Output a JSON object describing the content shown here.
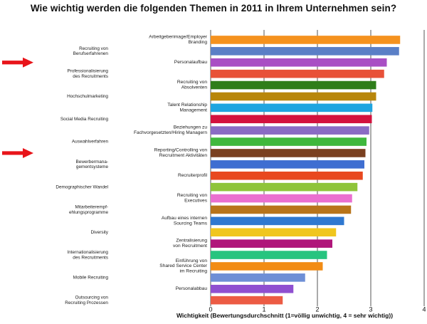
{
  "chart_data": {
    "type": "bar",
    "orientation": "horizontal",
    "title": "Wie wichtig werden die folgenden Themen in 2011 in Ihrem Unternehmen sein?",
    "xlabel": "Wichtigkeit (Bewertungsdurchschnitt (1=völlig unwichtig, 4 = sehr wichtig))",
    "xlim": [
      0,
      4
    ],
    "x_ticks": [
      "0",
      "1",
      "2",
      "3",
      "4"
    ],
    "grid": true,
    "categories": [
      "Arbeitgeberimage/Employer Branding",
      "Recruiting von Berufserfahrenen",
      "Professionalisierung des Recruitments",
      "Personalaufbau",
      "Hochschulmarketing",
      "Recruiting von Absolventen",
      "Social Media Recruiting",
      "Talent Relationship Management",
      "Auswahlverfahren",
      "Beziehungen zu Fachvorgesetzten/Hiring Managern",
      "Bewerbermanagementsysteme",
      "Reporting/Controlling von Recruitment Aktivitäten",
      "Demographischer Wandel",
      "Recruiterprofil",
      "Mitarbeiterempfehlungsprogramme",
      "Recruiting von Executives",
      "Diversity",
      "Aufbau eines internen Sourcing Teams",
      "Internationalisierung des Recruitments",
      "Zentralisierung von Recruitment",
      "Mobile Recruiting",
      "Einführung von Shared Service Center im Recruiting",
      "Outsourcing von Recruiting Prozessen",
      "Personalabbau"
    ],
    "values": [
      3.55,
      3.53,
      3.3,
      3.25,
      3.1,
      3.1,
      3.03,
      3.02,
      2.97,
      2.92,
      2.9,
      2.88,
      2.85,
      2.75,
      2.65,
      2.63,
      2.5,
      2.35,
      2.28,
      2.18,
      2.1,
      1.77,
      1.55,
      1.35
    ],
    "colors": [
      "#f5921e",
      "#5a7fc6",
      "#a94fc4",
      "#e85138",
      "#2e7d1a",
      "#b8860b",
      "#1fa5e0",
      "#d3123e",
      "#8a6cc4",
      "#3fb83d",
      "#7a4020",
      "#3f6ed1",
      "#e8481f",
      "#8fc43a",
      "#ea6fd0",
      "#b8741a",
      "#2f78d0",
      "#f0c61f",
      "#b0167a",
      "#27c47f",
      "#f28c15",
      "#6e8fd6",
      "#8f4fd0",
      "#ec5b44"
    ],
    "left_labels": [
      [
        "Recruiting von",
        "Berufserfahrenen"
      ],
      [
        "Professionalisierung",
        "des Recruitments"
      ],
      [
        "Hochschulmarketing"
      ],
      [
        "Social Media Recruiting"
      ],
      [
        "Auswahlverfahren"
      ],
      [
        "Bewerbermana-",
        "gementsysteme"
      ],
      [
        "Demographischer Wandel"
      ],
      [
        "Mitarbeiterempf-",
        "ehlungsprogramme"
      ],
      [
        "Diversity"
      ],
      [
        "Internationalisierung",
        "des Recruitments"
      ],
      [
        "Mobile Recruiting"
      ],
      [
        "Outsourcing von",
        "Recruiting Prozessen"
      ]
    ],
    "bar_labels": [
      [
        "Arbeitgeberimage/Employer",
        "Branding"
      ],
      [
        "Personalaufbau"
      ],
      [
        "Recruiting von",
        "Absolventen"
      ],
      [
        "Talent Relationship",
        "Management"
      ],
      [
        "Beziehungen zu",
        "Fachvorgesetzten/Hiring Managern"
      ],
      [
        "Reporting/Controlling von",
        "Recruitment Aktivitäten"
      ],
      [
        "Recruiterprofil"
      ],
      [
        "Recruiting von",
        "Executives"
      ],
      [
        "Aufbau eines internen",
        "Sourcing Teams"
      ],
      [
        "Zentralisierung",
        "von Recruitment"
      ],
      [
        "Einführung von",
        "Shared Service Center",
        "im Recruiting"
      ],
      [
        "Personalabbau"
      ]
    ],
    "highlighted_labels": [
      "Professionalisierung des Recruitments",
      "Bewerbermanagementsysteme"
    ],
    "highlight_marker": "red-arrow"
  }
}
